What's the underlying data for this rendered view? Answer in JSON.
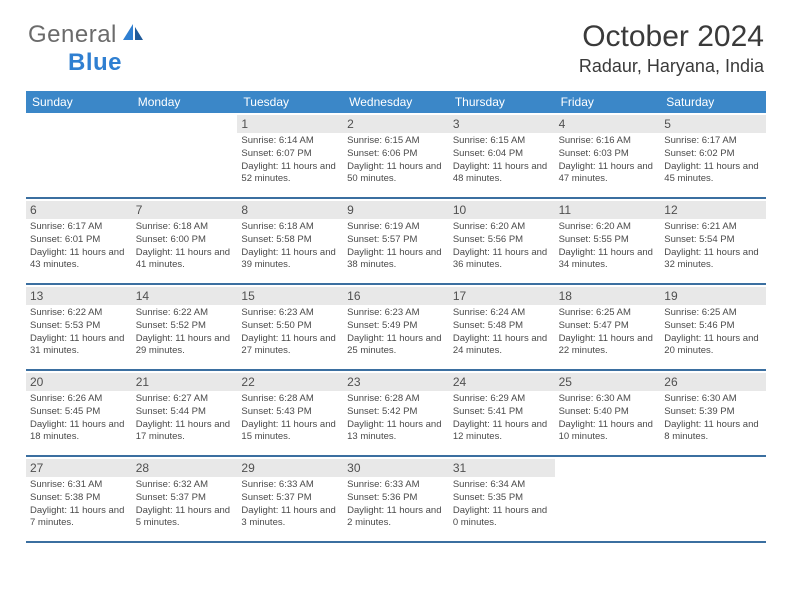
{
  "logo": {
    "text_gray": "General",
    "text_blue": "Blue"
  },
  "title": "October 2024",
  "location": "Radaur, Haryana, India",
  "weekdays": [
    "Sunday",
    "Monday",
    "Tuesday",
    "Wednesday",
    "Thursday",
    "Friday",
    "Saturday"
  ],
  "colors": {
    "header_bar": "#3b87c8",
    "row_divider": "#3b6fa0",
    "day_num_bg": "#e8e8e8",
    "text_dark": "#4a4a4a",
    "logo_gray": "#6b6b6b",
    "logo_blue": "#2f7fd1"
  },
  "weeks": [
    [
      null,
      null,
      {
        "num": "1",
        "sunrise": "6:14 AM",
        "sunset": "6:07 PM",
        "daylight": "11 hours and 52 minutes."
      },
      {
        "num": "2",
        "sunrise": "6:15 AM",
        "sunset": "6:06 PM",
        "daylight": "11 hours and 50 minutes."
      },
      {
        "num": "3",
        "sunrise": "6:15 AM",
        "sunset": "6:04 PM",
        "daylight": "11 hours and 48 minutes."
      },
      {
        "num": "4",
        "sunrise": "6:16 AM",
        "sunset": "6:03 PM",
        "daylight": "11 hours and 47 minutes."
      },
      {
        "num": "5",
        "sunrise": "6:17 AM",
        "sunset": "6:02 PM",
        "daylight": "11 hours and 45 minutes."
      }
    ],
    [
      {
        "num": "6",
        "sunrise": "6:17 AM",
        "sunset": "6:01 PM",
        "daylight": "11 hours and 43 minutes."
      },
      {
        "num": "7",
        "sunrise": "6:18 AM",
        "sunset": "6:00 PM",
        "daylight": "11 hours and 41 minutes."
      },
      {
        "num": "8",
        "sunrise": "6:18 AM",
        "sunset": "5:58 PM",
        "daylight": "11 hours and 39 minutes."
      },
      {
        "num": "9",
        "sunrise": "6:19 AM",
        "sunset": "5:57 PM",
        "daylight": "11 hours and 38 minutes."
      },
      {
        "num": "10",
        "sunrise": "6:20 AM",
        "sunset": "5:56 PM",
        "daylight": "11 hours and 36 minutes."
      },
      {
        "num": "11",
        "sunrise": "6:20 AM",
        "sunset": "5:55 PM",
        "daylight": "11 hours and 34 minutes."
      },
      {
        "num": "12",
        "sunrise": "6:21 AM",
        "sunset": "5:54 PM",
        "daylight": "11 hours and 32 minutes."
      }
    ],
    [
      {
        "num": "13",
        "sunrise": "6:22 AM",
        "sunset": "5:53 PM",
        "daylight": "11 hours and 31 minutes."
      },
      {
        "num": "14",
        "sunrise": "6:22 AM",
        "sunset": "5:52 PM",
        "daylight": "11 hours and 29 minutes."
      },
      {
        "num": "15",
        "sunrise": "6:23 AM",
        "sunset": "5:50 PM",
        "daylight": "11 hours and 27 minutes."
      },
      {
        "num": "16",
        "sunrise": "6:23 AM",
        "sunset": "5:49 PM",
        "daylight": "11 hours and 25 minutes."
      },
      {
        "num": "17",
        "sunrise": "6:24 AM",
        "sunset": "5:48 PM",
        "daylight": "11 hours and 24 minutes."
      },
      {
        "num": "18",
        "sunrise": "6:25 AM",
        "sunset": "5:47 PM",
        "daylight": "11 hours and 22 minutes."
      },
      {
        "num": "19",
        "sunrise": "6:25 AM",
        "sunset": "5:46 PM",
        "daylight": "11 hours and 20 minutes."
      }
    ],
    [
      {
        "num": "20",
        "sunrise": "6:26 AM",
        "sunset": "5:45 PM",
        "daylight": "11 hours and 18 minutes."
      },
      {
        "num": "21",
        "sunrise": "6:27 AM",
        "sunset": "5:44 PM",
        "daylight": "11 hours and 17 minutes."
      },
      {
        "num": "22",
        "sunrise": "6:28 AM",
        "sunset": "5:43 PM",
        "daylight": "11 hours and 15 minutes."
      },
      {
        "num": "23",
        "sunrise": "6:28 AM",
        "sunset": "5:42 PM",
        "daylight": "11 hours and 13 minutes."
      },
      {
        "num": "24",
        "sunrise": "6:29 AM",
        "sunset": "5:41 PM",
        "daylight": "11 hours and 12 minutes."
      },
      {
        "num": "25",
        "sunrise": "6:30 AM",
        "sunset": "5:40 PM",
        "daylight": "11 hours and 10 minutes."
      },
      {
        "num": "26",
        "sunrise": "6:30 AM",
        "sunset": "5:39 PM",
        "daylight": "11 hours and 8 minutes."
      }
    ],
    [
      {
        "num": "27",
        "sunrise": "6:31 AM",
        "sunset": "5:38 PM",
        "daylight": "11 hours and 7 minutes."
      },
      {
        "num": "28",
        "sunrise": "6:32 AM",
        "sunset": "5:37 PM",
        "daylight": "11 hours and 5 minutes."
      },
      {
        "num": "29",
        "sunrise": "6:33 AM",
        "sunset": "5:37 PM",
        "daylight": "11 hours and 3 minutes."
      },
      {
        "num": "30",
        "sunrise": "6:33 AM",
        "sunset": "5:36 PM",
        "daylight": "11 hours and 2 minutes."
      },
      {
        "num": "31",
        "sunrise": "6:34 AM",
        "sunset": "5:35 PM",
        "daylight": "11 hours and 0 minutes."
      },
      null,
      null
    ]
  ]
}
